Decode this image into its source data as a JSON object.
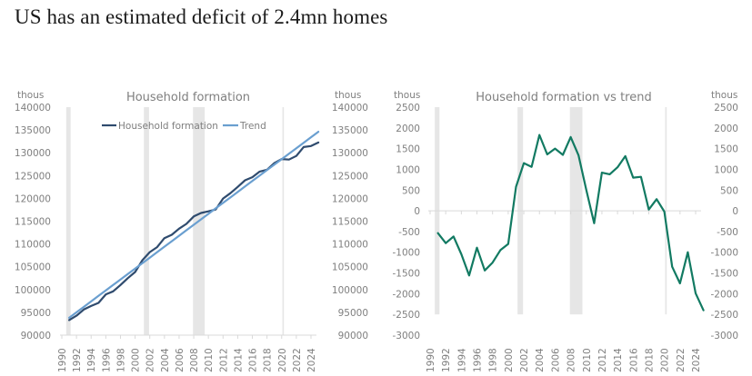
{
  "page": {
    "title": "US has an estimated deficit of 2.4mn homes"
  },
  "colors": {
    "household": "#2f4b6e",
    "trend": "#6a9fd0",
    "gap": "#127a62",
    "recession": "#e6e6e6",
    "axis_text": "#7f7f7f",
    "axis_line": "#d9d9d9"
  },
  "chart_data": [
    {
      "type": "line",
      "title": "Household formation",
      "ylabel_left": "thous",
      "ylabel_right": "thous",
      "xlabel": "",
      "ylim": [
        90000,
        140000
      ],
      "yticks": [
        90000,
        95000,
        100000,
        105000,
        110000,
        115000,
        120000,
        125000,
        130000,
        135000,
        140000
      ],
      "xticks": [
        "1990",
        "1992",
        "1994",
        "1996",
        "1998",
        "2000",
        "2002",
        "2004",
        "2006",
        "2008",
        "2010",
        "2012",
        "2014",
        "2016",
        "2018",
        "2020",
        "2022",
        "2024"
      ],
      "xlim": [
        1990,
        2025
      ],
      "legend": "top-center",
      "grid": false,
      "recessions": [
        [
          1990.6,
          1991.2
        ],
        [
          2001.2,
          2001.9
        ],
        [
          2007.9,
          2009.5
        ],
        [
          2020.1,
          2020.3
        ]
      ],
      "x": [
        1991,
        1992,
        1993,
        1994,
        1995,
        1996,
        1997,
        1998,
        1999,
        2000,
        2001,
        2002,
        2003,
        2004,
        2005,
        2006,
        2007,
        2008,
        2009,
        2010,
        2011,
        2012,
        2013,
        2014,
        2015,
        2016,
        2017,
        2018,
        2019,
        2020,
        2021,
        2022,
        2023,
        2024,
        2025
      ],
      "series": [
        {
          "name": "Household formation",
          "values": [
            93300,
            94260,
            95620,
            96390,
            97080,
            98950,
            99600,
            101000,
            102500,
            103850,
            106430,
            108200,
            109310,
            111280,
            112010,
            113350,
            114400,
            116030,
            116790,
            117150,
            117550,
            119970,
            121130,
            122500,
            123970,
            124650,
            125870,
            126280,
            127730,
            128630,
            128500,
            129300,
            131250,
            131470,
            132250
          ]
        },
        {
          "name": "Trend",
          "values": [
            93800,
            95000,
            96200,
            97400,
            98600,
            99800,
            101000,
            102200,
            103400,
            104600,
            105800,
            107000,
            108200,
            109400,
            110600,
            111800,
            113000,
            114200,
            115400,
            116600,
            117800,
            119000,
            120200,
            121400,
            122600,
            123800,
            125000,
            126200,
            127400,
            128600,
            129800,
            131000,
            132200,
            133400,
            134600
          ]
        }
      ]
    },
    {
      "type": "line",
      "title": "Household formation vs trend",
      "ylabel_left": "thous",
      "ylabel_right": "thous",
      "xlabel": "",
      "ylim": [
        -3000,
        2500
      ],
      "yticks": [
        -3000,
        -2500,
        -2000,
        -1500,
        -1000,
        -500,
        0,
        500,
        1000,
        1500,
        2000,
        2500
      ],
      "xticks": [
        "1990",
        "1992",
        "1994",
        "1996",
        "1998",
        "2000",
        "2002",
        "2004",
        "2006",
        "2008",
        "2010",
        "2012",
        "2014",
        "2016",
        "2018",
        "2020",
        "2022",
        "2024"
      ],
      "xlim": [
        1990,
        2025
      ],
      "legend": "none",
      "grid": false,
      "recessions": [
        [
          1990.6,
          1991.2
        ],
        [
          2001.2,
          2001.9
        ],
        [
          2007.9,
          2009.5
        ],
        [
          2020.1,
          2020.3
        ]
      ],
      "recession_floor": -2500,
      "x": [
        1991,
        1992,
        1993,
        1994,
        1995,
        1996,
        1997,
        1998,
        1999,
        2000,
        2001,
        2002,
        2003,
        2004,
        2005,
        2006,
        2007,
        2008,
        2009,
        2010,
        2011,
        2012,
        2013,
        2014,
        2015,
        2016,
        2017,
        2018,
        2019,
        2020,
        2021,
        2022,
        2023,
        2024,
        2025
      ],
      "series": [
        {
          "name": "Household formation vs trend",
          "values": [
            -540,
            -780,
            -620,
            -1050,
            -1560,
            -890,
            -1440,
            -1250,
            -950,
            -800,
            580,
            1150,
            1060,
            1830,
            1360,
            1500,
            1350,
            1780,
            1340,
            500,
            -300,
            920,
            880,
            1050,
            1320,
            800,
            820,
            30,
            280,
            -20,
            -1350,
            -1750,
            -1000,
            -1990,
            -2400
          ]
        }
      ]
    }
  ]
}
